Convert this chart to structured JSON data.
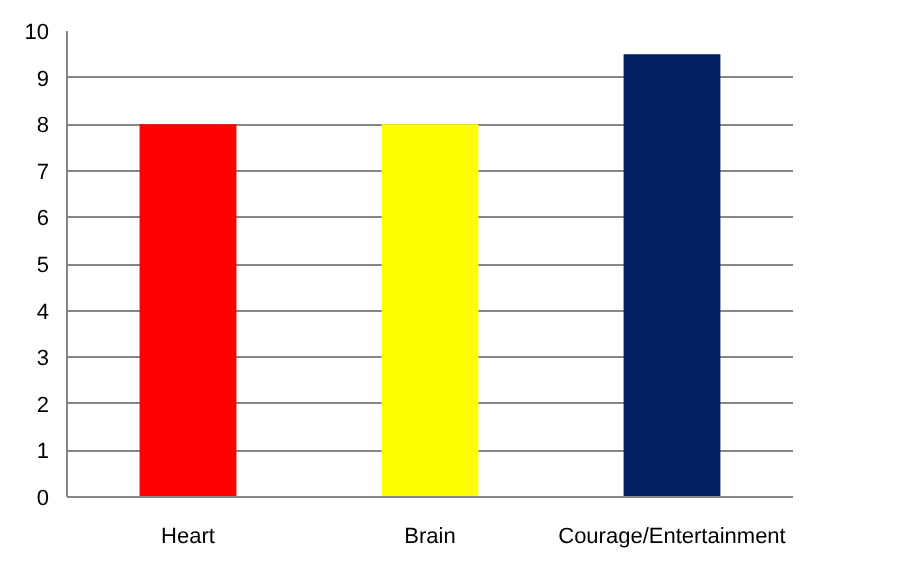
{
  "chart_data": {
    "type": "bar",
    "categories": [
      "Heart",
      "Brain",
      "Courage/Entertainment"
    ],
    "values": [
      8,
      8,
      9.5
    ],
    "colors": [
      "#ff0000",
      "#ffff00",
      "#002060"
    ],
    "ylim": [
      0,
      10
    ],
    "yticks": [
      0,
      1,
      2,
      3,
      4,
      5,
      6,
      7,
      8,
      9,
      10
    ],
    "grid": "y"
  }
}
